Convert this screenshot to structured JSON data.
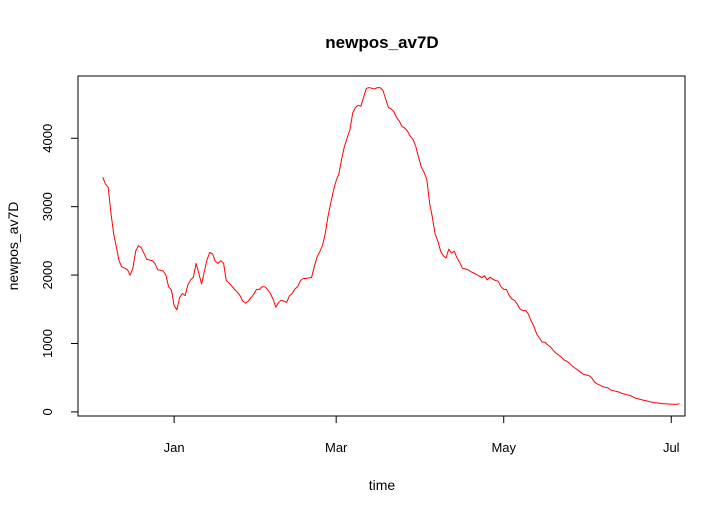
{
  "chart_data": {
    "type": "line",
    "title": "newpos_av7D",
    "xlabel": "time",
    "ylabel": "newpos_av7D",
    "x_ticks": [
      {
        "label": "Jan",
        "value": 0
      },
      {
        "label": "Mar",
        "value": 59
      },
      {
        "label": "May",
        "value": 120
      },
      {
        "label": "Jul",
        "value": 181
      }
    ],
    "y_ticks": [
      0,
      1000,
      2000,
      3000,
      4000
    ],
    "xlim": [
      -35,
      186
    ],
    "ylim": [
      -60,
      4910
    ],
    "series": [
      {
        "color": "#ff0000",
        "points": [
          [
            -26,
            3430
          ],
          [
            -25,
            3330
          ],
          [
            -24,
            3280
          ],
          [
            -23,
            2900
          ],
          [
            -22,
            2600
          ],
          [
            -21,
            2400
          ],
          [
            -20,
            2200
          ],
          [
            -19,
            2120
          ],
          [
            -18,
            2100
          ],
          [
            -17,
            2080
          ],
          [
            -16,
            2000
          ],
          [
            -15,
            2100
          ],
          [
            -14,
            2350
          ],
          [
            -13,
            2430
          ],
          [
            -12,
            2400
          ],
          [
            -11,
            2320
          ],
          [
            -10,
            2230
          ],
          [
            -9,
            2220
          ],
          [
            -8,
            2210
          ],
          [
            -7,
            2170
          ],
          [
            -6,
            2080
          ],
          [
            -5,
            2070
          ],
          [
            -4,
            2060
          ],
          [
            -3,
            2000
          ],
          [
            -2,
            1830
          ],
          [
            -1,
            1780
          ],
          [
            0,
            1560
          ],
          [
            1,
            1490
          ],
          [
            2,
            1670
          ],
          [
            3,
            1730
          ],
          [
            4,
            1700
          ],
          [
            5,
            1860
          ],
          [
            6,
            1930
          ],
          [
            7,
            1970
          ],
          [
            8,
            2170
          ],
          [
            9,
            2020
          ],
          [
            10,
            1870
          ],
          [
            11,
            2050
          ],
          [
            12,
            2230
          ],
          [
            13,
            2330
          ],
          [
            14,
            2310
          ],
          [
            15,
            2200
          ],
          [
            16,
            2170
          ],
          [
            17,
            2210
          ],
          [
            18,
            2170
          ],
          [
            19,
            1920
          ],
          [
            20,
            1880
          ],
          [
            21,
            1840
          ],
          [
            22,
            1790
          ],
          [
            23,
            1750
          ],
          [
            24,
            1700
          ],
          [
            25,
            1620
          ],
          [
            26,
            1590
          ],
          [
            27,
            1620
          ],
          [
            28,
            1670
          ],
          [
            29,
            1720
          ],
          [
            30,
            1790
          ],
          [
            31,
            1790
          ],
          [
            32,
            1830
          ],
          [
            33,
            1830
          ],
          [
            34,
            1790
          ],
          [
            35,
            1730
          ],
          [
            36,
            1650
          ],
          [
            37,
            1530
          ],
          [
            38,
            1600
          ],
          [
            39,
            1630
          ],
          [
            40,
            1620
          ],
          [
            41,
            1600
          ],
          [
            42,
            1700
          ],
          [
            43,
            1730
          ],
          [
            44,
            1800
          ],
          [
            45,
            1830
          ],
          [
            46,
            1920
          ],
          [
            47,
            1950
          ],
          [
            48,
            1950
          ],
          [
            49,
            1960
          ],
          [
            50,
            1960
          ],
          [
            51,
            2120
          ],
          [
            52,
            2260
          ],
          [
            53,
            2340
          ],
          [
            54,
            2430
          ],
          [
            55,
            2600
          ],
          [
            56,
            2850
          ],
          [
            57,
            3050
          ],
          [
            58,
            3230
          ],
          [
            59,
            3380
          ],
          [
            60,
            3480
          ],
          [
            61,
            3700
          ],
          [
            62,
            3880
          ],
          [
            63,
            4010
          ],
          [
            64,
            4120
          ],
          [
            65,
            4370
          ],
          [
            66,
            4450
          ],
          [
            67,
            4480
          ],
          [
            68,
            4470
          ],
          [
            69,
            4600
          ],
          [
            70,
            4730
          ],
          [
            71,
            4740
          ],
          [
            72,
            4730
          ],
          [
            73,
            4720
          ],
          [
            74,
            4740
          ],
          [
            75,
            4740
          ],
          [
            76,
            4700
          ],
          [
            77,
            4580
          ],
          [
            78,
            4450
          ],
          [
            79,
            4430
          ],
          [
            80,
            4390
          ],
          [
            81,
            4300
          ],
          [
            82,
            4250
          ],
          [
            83,
            4170
          ],
          [
            84,
            4150
          ],
          [
            85,
            4100
          ],
          [
            86,
            4030
          ],
          [
            87,
            3980
          ],
          [
            88,
            3880
          ],
          [
            89,
            3720
          ],
          [
            90,
            3580
          ],
          [
            91,
            3500
          ],
          [
            92,
            3400
          ],
          [
            93,
            3050
          ],
          [
            94,
            2850
          ],
          [
            95,
            2600
          ],
          [
            96,
            2500
          ],
          [
            97,
            2350
          ],
          [
            98,
            2280
          ],
          [
            99,
            2250
          ],
          [
            100,
            2380
          ],
          [
            101,
            2320
          ],
          [
            102,
            2350
          ],
          [
            103,
            2250
          ],
          [
            104,
            2180
          ],
          [
            105,
            2100
          ],
          [
            106,
            2090
          ],
          [
            107,
            2080
          ],
          [
            108,
            2050
          ],
          [
            109,
            2030
          ],
          [
            110,
            2010
          ],
          [
            111,
            1990
          ],
          [
            112,
            1960
          ],
          [
            113,
            1990
          ],
          [
            114,
            1930
          ],
          [
            115,
            1970
          ],
          [
            116,
            1940
          ],
          [
            117,
            1920
          ],
          [
            118,
            1910
          ],
          [
            119,
            1830
          ],
          [
            120,
            1790
          ],
          [
            121,
            1790
          ],
          [
            122,
            1700
          ],
          [
            123,
            1650
          ],
          [
            124,
            1630
          ],
          [
            125,
            1570
          ],
          [
            126,
            1500
          ],
          [
            127,
            1480
          ],
          [
            128,
            1480
          ],
          [
            129,
            1430
          ],
          [
            130,
            1330
          ],
          [
            131,
            1250
          ],
          [
            132,
            1140
          ],
          [
            133,
            1080
          ],
          [
            134,
            1020
          ],
          [
            135,
            1020
          ],
          [
            136,
            980
          ],
          [
            137,
            950
          ],
          [
            138,
            900
          ],
          [
            139,
            860
          ],
          [
            140,
            830
          ],
          [
            141,
            800
          ],
          [
            142,
            760
          ],
          [
            143,
            740
          ],
          [
            144,
            710
          ],
          [
            145,
            670
          ],
          [
            146,
            640
          ],
          [
            147,
            610
          ],
          [
            148,
            580
          ],
          [
            149,
            550
          ],
          [
            150,
            540
          ],
          [
            151,
            530
          ],
          [
            152,
            500
          ],
          [
            153,
            440
          ],
          [
            154,
            410
          ],
          [
            155,
            390
          ],
          [
            156,
            370
          ],
          [
            157,
            360
          ],
          [
            158,
            350
          ],
          [
            159,
            320
          ],
          [
            160,
            310
          ],
          [
            161,
            300
          ],
          [
            162,
            290
          ],
          [
            163,
            270
          ],
          [
            164,
            260
          ],
          [
            165,
            250
          ],
          [
            166,
            240
          ],
          [
            167,
            220
          ],
          [
            168,
            200
          ],
          [
            169,
            190
          ],
          [
            170,
            180
          ],
          [
            171,
            170
          ],
          [
            172,
            160
          ],
          [
            173,
            150
          ],
          [
            174,
            140
          ],
          [
            175,
            135
          ],
          [
            176,
            130
          ],
          [
            177,
            125
          ],
          [
            178,
            120
          ],
          [
            179,
            118
          ],
          [
            180,
            115
          ],
          [
            181,
            112
          ],
          [
            182,
            112
          ],
          [
            183,
            112
          ],
          [
            184,
            118
          ]
        ]
      }
    ]
  }
}
